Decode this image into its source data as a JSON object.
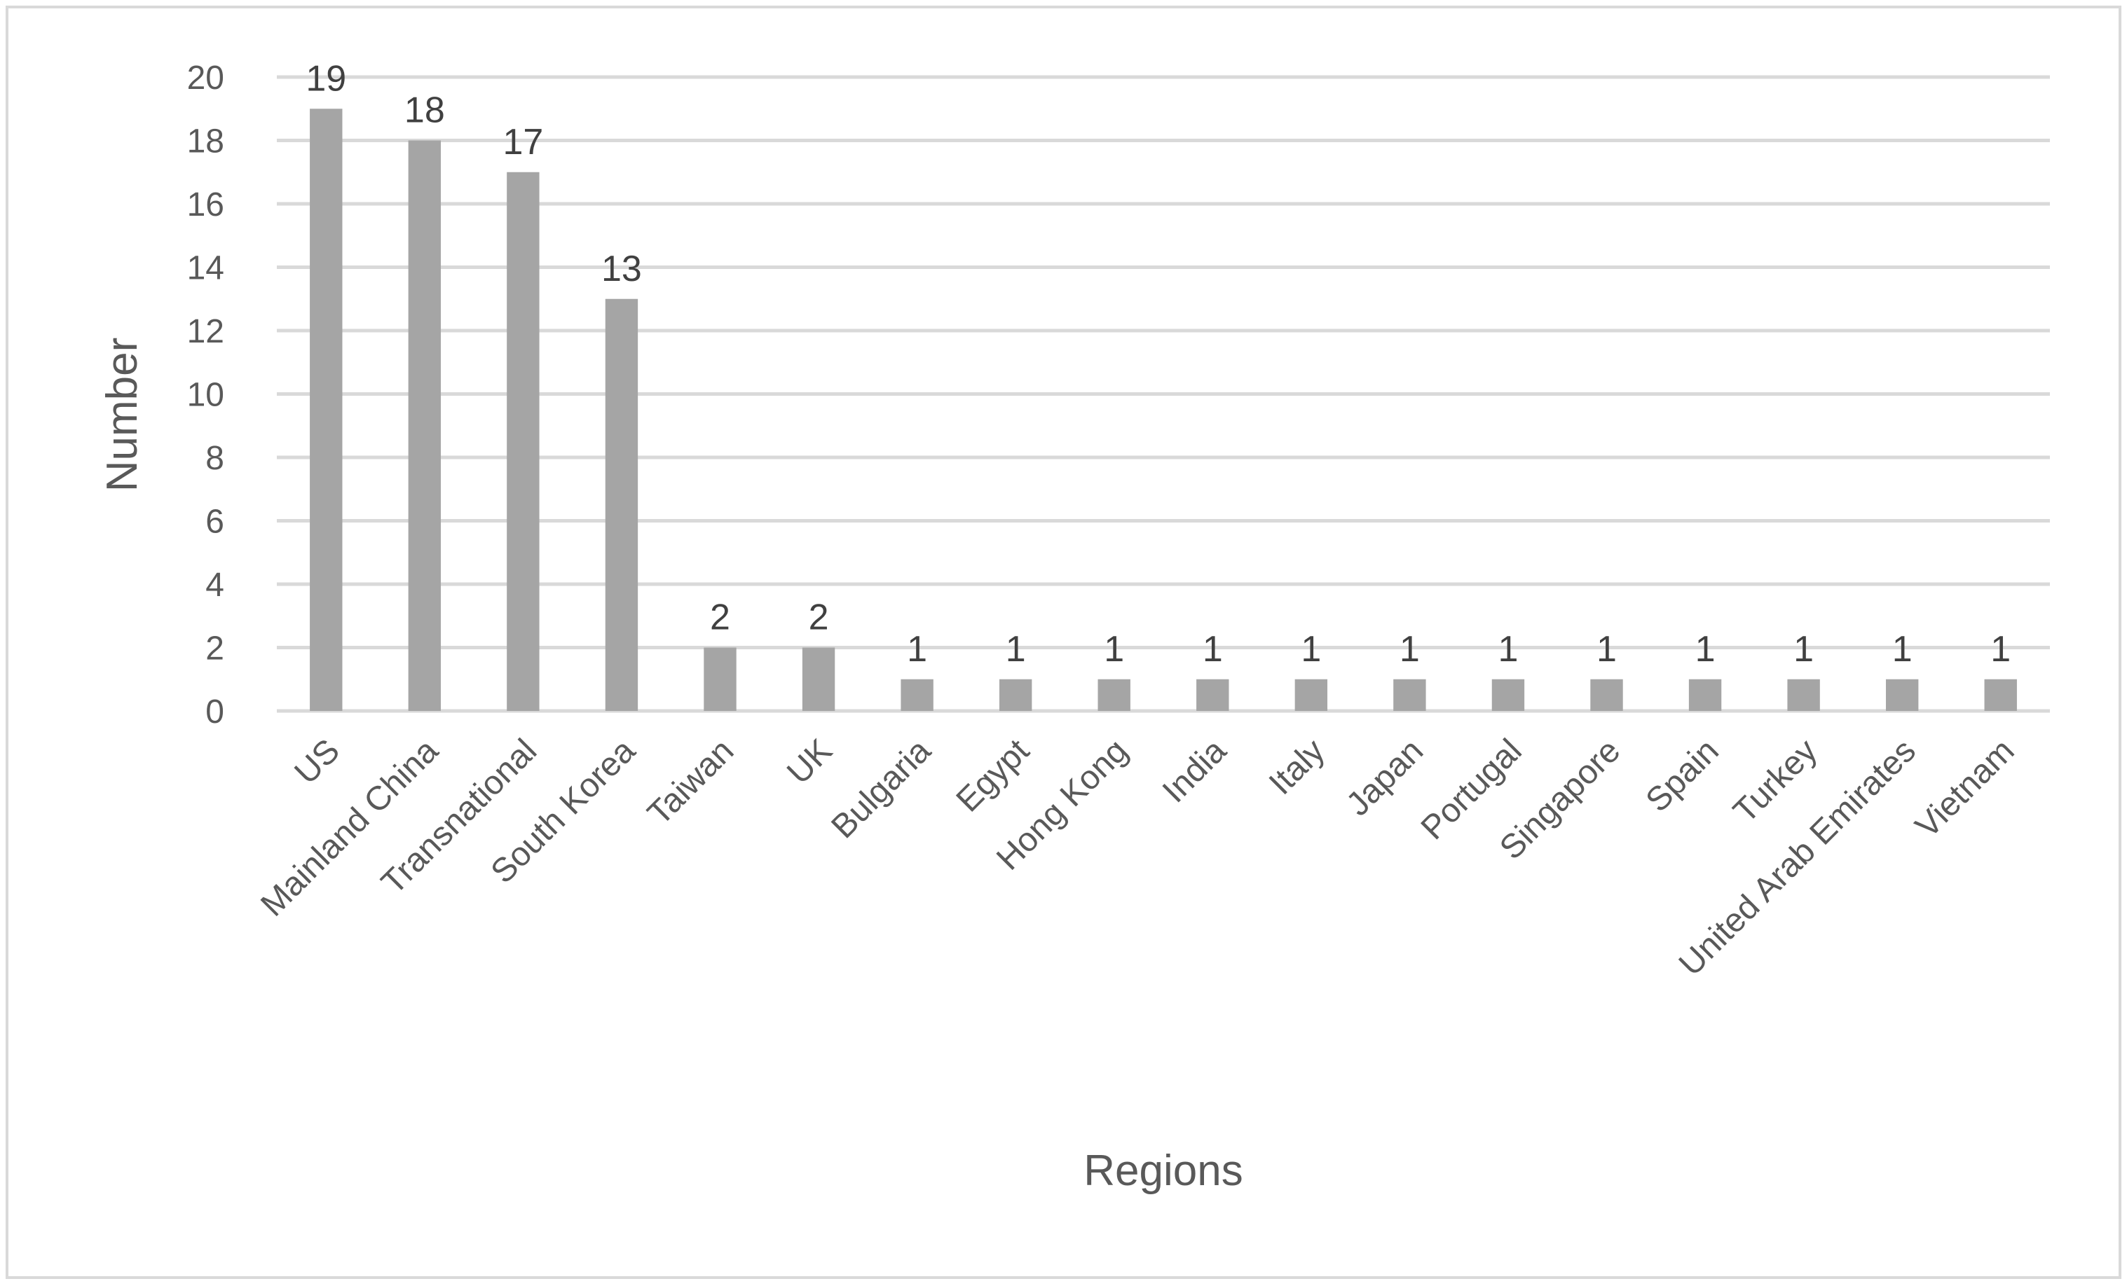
{
  "chart_data": {
    "type": "bar",
    "categories": [
      "US",
      "Mainland China",
      "Transnational",
      "South Korea",
      "Taiwan",
      "UK",
      "Bulgaria",
      "Egypt",
      "Hong Kong",
      "India",
      "Italy",
      "Japan",
      "Portugal",
      "Singapore",
      "Spain",
      "Turkey",
      "United Arab Emirates",
      "Vietnam"
    ],
    "values": [
      19,
      18,
      17,
      13,
      2,
      2,
      1,
      1,
      1,
      1,
      1,
      1,
      1,
      1,
      1,
      1,
      1,
      1
    ],
    "title": "",
    "xlabel": "Regions",
    "ylabel": "Number",
    "ylim": [
      0,
      20
    ],
    "yticks": [
      "0",
      "2",
      "4",
      "6",
      "8",
      "10",
      "12",
      "14",
      "16",
      "18",
      "20"
    ],
    "grid": true,
    "data_labels": true,
    "legend": "none",
    "colors": {
      "bar": "#a5a5a5",
      "grid": "#d9d9d9",
      "border": "#d9d9d9",
      "text": "#595959"
    }
  }
}
